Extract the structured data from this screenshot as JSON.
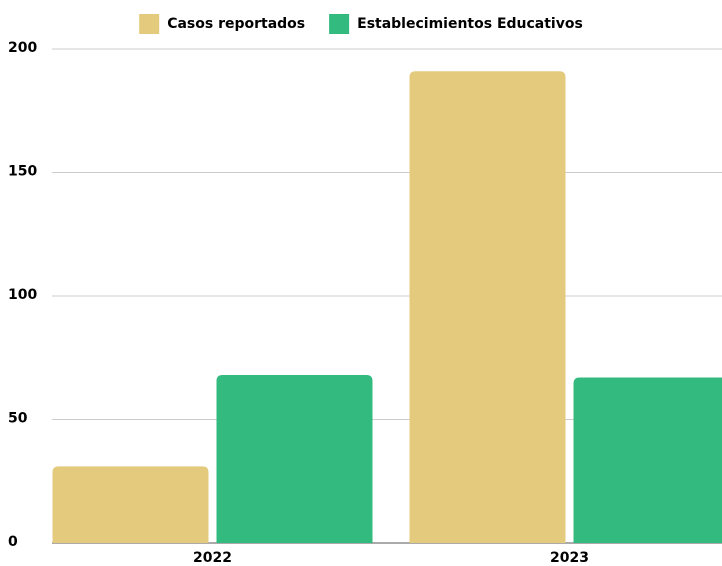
{
  "chart_data": {
    "type": "bar",
    "categories": [
      "2022",
      "2023"
    ],
    "series": [
      {
        "name": "Casos reportados",
        "color": "#e3ca7d",
        "values": [
          31,
          191
        ]
      },
      {
        "name": "Establecimientos Educativos",
        "color": "#33ba7e",
        "values": [
          68,
          67
        ]
      }
    ],
    "ylim": [
      0,
      200
    ],
    "yticks": [
      0,
      50,
      100,
      150,
      200
    ],
    "grid": true,
    "legend": "top"
  }
}
